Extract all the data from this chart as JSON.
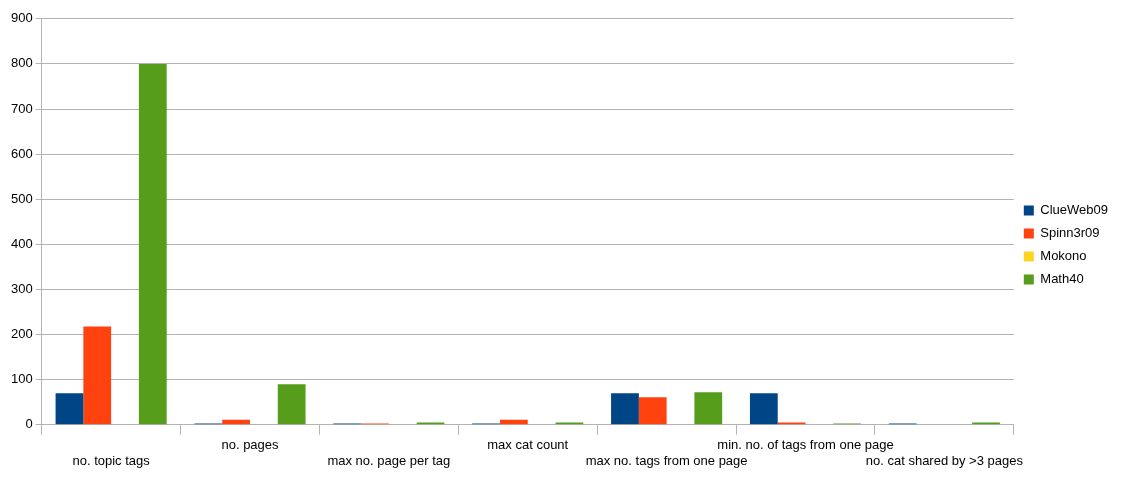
{
  "chart_data": {
    "type": "bar",
    "categories": [
      "no. topic tags",
      "no. pages",
      "max no. page per tag",
      "max cat count",
      "max no. tags from one page",
      "min. no. of tags from one page",
      "no. cat shared by >3 pages"
    ],
    "series": [
      {
        "name": "ClueWeb09",
        "color": "#004586",
        "values": [
          70,
          3,
          3,
          3,
          70,
          70,
          3
        ]
      },
      {
        "name": "Spinn3r09",
        "color": "#ff420e",
        "values": [
          218,
          11,
          3,
          11,
          61,
          5,
          0
        ]
      },
      {
        "name": "Mokono",
        "color": "#ffd320",
        "values": [
          0,
          0,
          0,
          0,
          0,
          0,
          0
        ]
      },
      {
        "name": "Math40",
        "color": "#579d1c",
        "values": [
          800,
          90,
          5,
          5,
          72,
          3,
          5
        ]
      }
    ],
    "ylim": [
      0,
      900
    ],
    "yticks": [
      0,
      100,
      200,
      300,
      400,
      500,
      600,
      700,
      800,
      900
    ],
    "grid": "y",
    "legend": "right"
  }
}
